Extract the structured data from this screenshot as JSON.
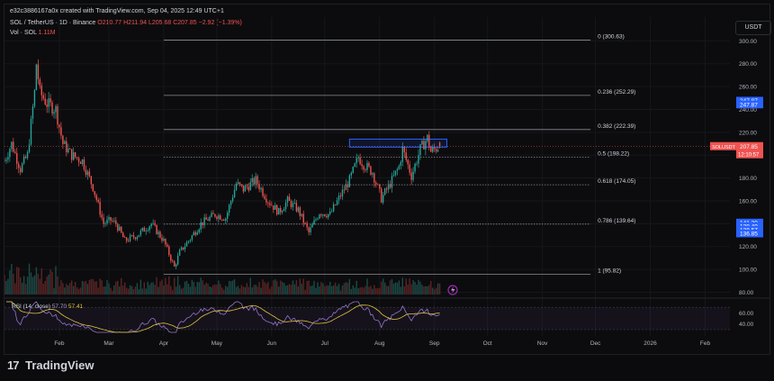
{
  "header": {
    "text": "e32c3886167a0x created with TradingView.com, Sep 04, 2025 12:49 UTC+1"
  },
  "symbol": {
    "text": "SOL / TetherUS · 1D · Binance",
    "ohlc": "O210.77 H211.94 L205.68 C207.85 −2.92 (−1.39%)"
  },
  "volume": {
    "label": "Vol · SOL",
    "value": "1.11M"
  },
  "currency": "USDT",
  "rsi": {
    "label": "RSI (14, close)",
    "value1": "57.70",
    "value2": "57.41"
  },
  "brand": {
    "logo": "17",
    "name": "TradingView"
  },
  "colors": {
    "up": "#26a69a",
    "down": "#ef5350",
    "rsi_line": "#9575cd",
    "rsi_ma": "#e0c341",
    "zone": "#2962ff",
    "background": "#0c0c0e"
  },
  "icons": {
    "lightning": "lightning-icon",
    "logo": "tradingview-logo-icon"
  },
  "chart_data": {
    "type": "candlestick",
    "y_ticks": [
      300,
      280,
      260,
      240,
      220,
      200,
      180,
      160,
      140,
      120,
      100,
      80
    ],
    "y_tick_labels": [
      "300.00",
      "280.00",
      "260.00",
      "240.00",
      "220.00",
      "200.00",
      "180.00",
      "160.00",
      "140.00",
      "120.00",
      "100.00",
      "80.00"
    ],
    "ylim": [
      78,
      305
    ],
    "x_ticks": [
      "Feb",
      "Mar",
      "Apr",
      "May",
      "Jun",
      "Jul",
      "Aug",
      "Sep",
      "Oct",
      "Nov",
      "Dec",
      "2026",
      "Feb"
    ],
    "x_tick_dates": [
      "2025-02-01",
      "2025-03-01",
      "2025-04-01",
      "2025-05-01",
      "2025-06-01",
      "2025-07-01",
      "2025-08-01",
      "2025-09-01",
      "2025-10-01",
      "2025-11-01",
      "2025-12-01",
      "2026-01-01",
      "2026-02-01"
    ],
    "date_range": [
      "2025-01-01",
      "2026-02-15"
    ],
    "fib_levels": [
      {
        "ratio": "0",
        "label": "0 (300.63)",
        "price": 300.63
      },
      {
        "ratio": "0.236",
        "label": "0.236 (252.29)",
        "price": 252.29
      },
      {
        "ratio": "0.382",
        "label": "0.382 (222.39)",
        "price": 222.39
      },
      {
        "ratio": "0.5",
        "label": "0.5 (198.22)",
        "price": 198.22
      },
      {
        "ratio": "0.618",
        "label": "0.618 (174.05)",
        "price": 174.05
      },
      {
        "ratio": "0.786",
        "label": "0.786 (139.64)",
        "price": 139.64
      },
      {
        "ratio": "1",
        "label": "1 (95.82)",
        "price": 95.82
      }
    ],
    "fib_start_date": "2025-04-01",
    "fib_end_date": "2025-09-18",
    "resistance_zone": {
      "from_date": "2025-07-15",
      "to_date": "2025-09-08",
      "low": 207,
      "high": 214
    },
    "price_labels": [
      {
        "price": 247.87,
        "text": "247.87",
        "type": "blue"
      },
      {
        "price": 244.5,
        "text": "247.87",
        "type": "blue"
      },
      {
        "price": 207.85,
        "text": "SOLUSDT",
        "text2": "207.85",
        "text3": "12:10:57",
        "type": "red"
      },
      {
        "price": 141.2,
        "text": "141.20",
        "type": "blue"
      },
      {
        "price": 138.0,
        "text": "139.49",
        "type": "blue"
      },
      {
        "price": 134.8,
        "text": "138.57",
        "type": "blue"
      },
      {
        "price": 131.6,
        "text": "136.85",
        "type": "blue"
      }
    ],
    "close_series": [
      {
        "date": "2025-01-01",
        "close": 195
      },
      {
        "date": "2025-01-05",
        "close": 210
      },
      {
        "date": "2025-01-10",
        "close": 188
      },
      {
        "date": "2025-01-14",
        "close": 200
      },
      {
        "date": "2025-01-18",
        "close": 255
      },
      {
        "date": "2025-01-19",
        "close": 280
      },
      {
        "date": "2025-01-21",
        "close": 255
      },
      {
        "date": "2025-01-25",
        "close": 245
      },
      {
        "date": "2025-01-30",
        "close": 240
      },
      {
        "date": "2025-02-03",
        "close": 210
      },
      {
        "date": "2025-02-08",
        "close": 200
      },
      {
        "date": "2025-02-14",
        "close": 195
      },
      {
        "date": "2025-02-20",
        "close": 172
      },
      {
        "date": "2025-02-26",
        "close": 140
      },
      {
        "date": "2025-03-02",
        "close": 143
      },
      {
        "date": "2025-03-05",
        "close": 140
      },
      {
        "date": "2025-03-10",
        "close": 125
      },
      {
        "date": "2025-03-17",
        "close": 130
      },
      {
        "date": "2025-03-25",
        "close": 140
      },
      {
        "date": "2025-04-01",
        "close": 125
      },
      {
        "date": "2025-04-07",
        "close": 102
      },
      {
        "date": "2025-04-10",
        "close": 115
      },
      {
        "date": "2025-04-15",
        "close": 125
      },
      {
        "date": "2025-04-22",
        "close": 140
      },
      {
        "date": "2025-04-30",
        "close": 148
      },
      {
        "date": "2025-05-06",
        "close": 145
      },
      {
        "date": "2025-05-12",
        "close": 175
      },
      {
        "date": "2025-05-16",
        "close": 170
      },
      {
        "date": "2025-05-23",
        "close": 178
      },
      {
        "date": "2025-05-30",
        "close": 160
      },
      {
        "date": "2025-06-05",
        "close": 150
      },
      {
        "date": "2025-06-10",
        "close": 160
      },
      {
        "date": "2025-06-16",
        "close": 152
      },
      {
        "date": "2025-06-22",
        "close": 132
      },
      {
        "date": "2025-06-28",
        "close": 150
      },
      {
        "date": "2025-07-04",
        "close": 148
      },
      {
        "date": "2025-07-10",
        "close": 165
      },
      {
        "date": "2025-07-15",
        "close": 178
      },
      {
        "date": "2025-07-20",
        "close": 198
      },
      {
        "date": "2025-07-23",
        "close": 192
      },
      {
        "date": "2025-07-28",
        "close": 185
      },
      {
        "date": "2025-08-02",
        "close": 162
      },
      {
        "date": "2025-08-07",
        "close": 175
      },
      {
        "date": "2025-08-12",
        "close": 190
      },
      {
        "date": "2025-08-14",
        "close": 205
      },
      {
        "date": "2025-08-19",
        "close": 182
      },
      {
        "date": "2025-08-24",
        "close": 205
      },
      {
        "date": "2025-08-28",
        "close": 215
      },
      {
        "date": "2025-08-30",
        "close": 203
      },
      {
        "date": "2025-09-04",
        "close": 207.85
      }
    ],
    "rsi_ticks": [
      60,
      40
    ],
    "rsi_tick_labels": [
      "60.00",
      "40.00"
    ],
    "rsi_lim": [
      25,
      80
    ]
  }
}
